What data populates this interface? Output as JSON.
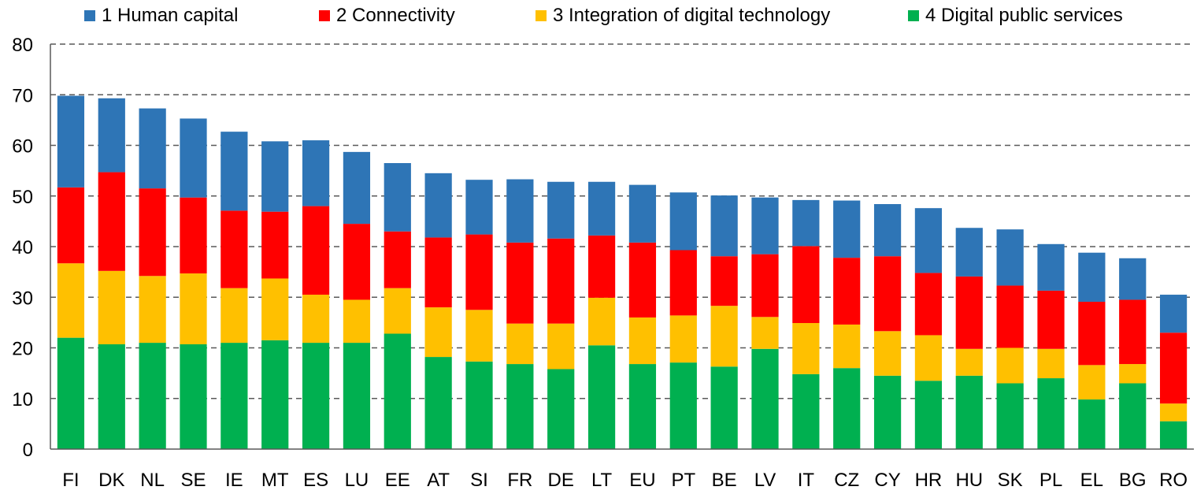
{
  "chart_data": {
    "type": "bar",
    "stacked": true,
    "title": "",
    "xlabel": "",
    "ylabel": "",
    "ylim": [
      0,
      80
    ],
    "yticks": [
      0,
      10,
      20,
      30,
      40,
      50,
      60,
      70,
      80
    ],
    "grid": true,
    "legend_position": "top",
    "categories": [
      "FI",
      "DK",
      "NL",
      "SE",
      "IE",
      "MT",
      "ES",
      "LU",
      "EE",
      "AT",
      "SI",
      "FR",
      "DE",
      "LT",
      "EU",
      "PT",
      "BE",
      "LV",
      "IT",
      "CZ",
      "CY",
      "HR",
      "HU",
      "SK",
      "PL",
      "EL",
      "BG",
      "RO"
    ],
    "series": [
      {
        "name": "4 Digital public services",
        "color": "#00b050",
        "values": [
          22.0,
          20.7,
          21.0,
          20.7,
          21.0,
          21.5,
          21.0,
          21.0,
          22.8,
          18.2,
          17.3,
          16.8,
          15.8,
          20.5,
          16.8,
          17.1,
          16.3,
          19.8,
          14.8,
          16.0,
          14.5,
          13.5,
          14.5,
          13.0,
          14.0,
          9.8,
          13.0,
          5.5
        ]
      },
      {
        "name": "3 Integration of digital technology",
        "color": "#ffc000",
        "values": [
          14.7,
          14.5,
          13.2,
          14.0,
          10.8,
          12.2,
          9.5,
          8.5,
          9.0,
          9.8,
          10.2,
          8.0,
          9.0,
          9.4,
          9.2,
          9.3,
          12.0,
          6.3,
          10.1,
          8.6,
          8.8,
          9.0,
          5.3,
          7.0,
          5.8,
          6.8,
          3.8,
          3.5
        ]
      },
      {
        "name": "2 Connectivity",
        "color": "#ff0000",
        "values": [
          15.0,
          19.5,
          17.3,
          15.0,
          15.3,
          13.2,
          17.5,
          15.0,
          11.2,
          13.8,
          14.9,
          16.0,
          16.8,
          12.3,
          14.8,
          12.9,
          9.8,
          12.4,
          15.2,
          13.2,
          14.8,
          12.3,
          14.3,
          12.3,
          11.5,
          12.5,
          12.7,
          14.0
        ]
      },
      {
        "name": "1 Human capital",
        "color": "#2e75b6",
        "values": [
          18.1,
          14.6,
          15.8,
          15.6,
          15.6,
          13.9,
          13.0,
          14.2,
          13.5,
          12.7,
          10.8,
          12.5,
          11.2,
          10.6,
          11.4,
          11.4,
          12.0,
          11.2,
          9.1,
          11.3,
          10.3,
          12.8,
          9.6,
          11.1,
          9.2,
          9.7,
          8.2,
          7.5
        ]
      }
    ],
    "legend_order": [
      "1 Human capital",
      "2 Connectivity",
      "3 Integration of digital technology",
      "4 Digital public services"
    ]
  }
}
